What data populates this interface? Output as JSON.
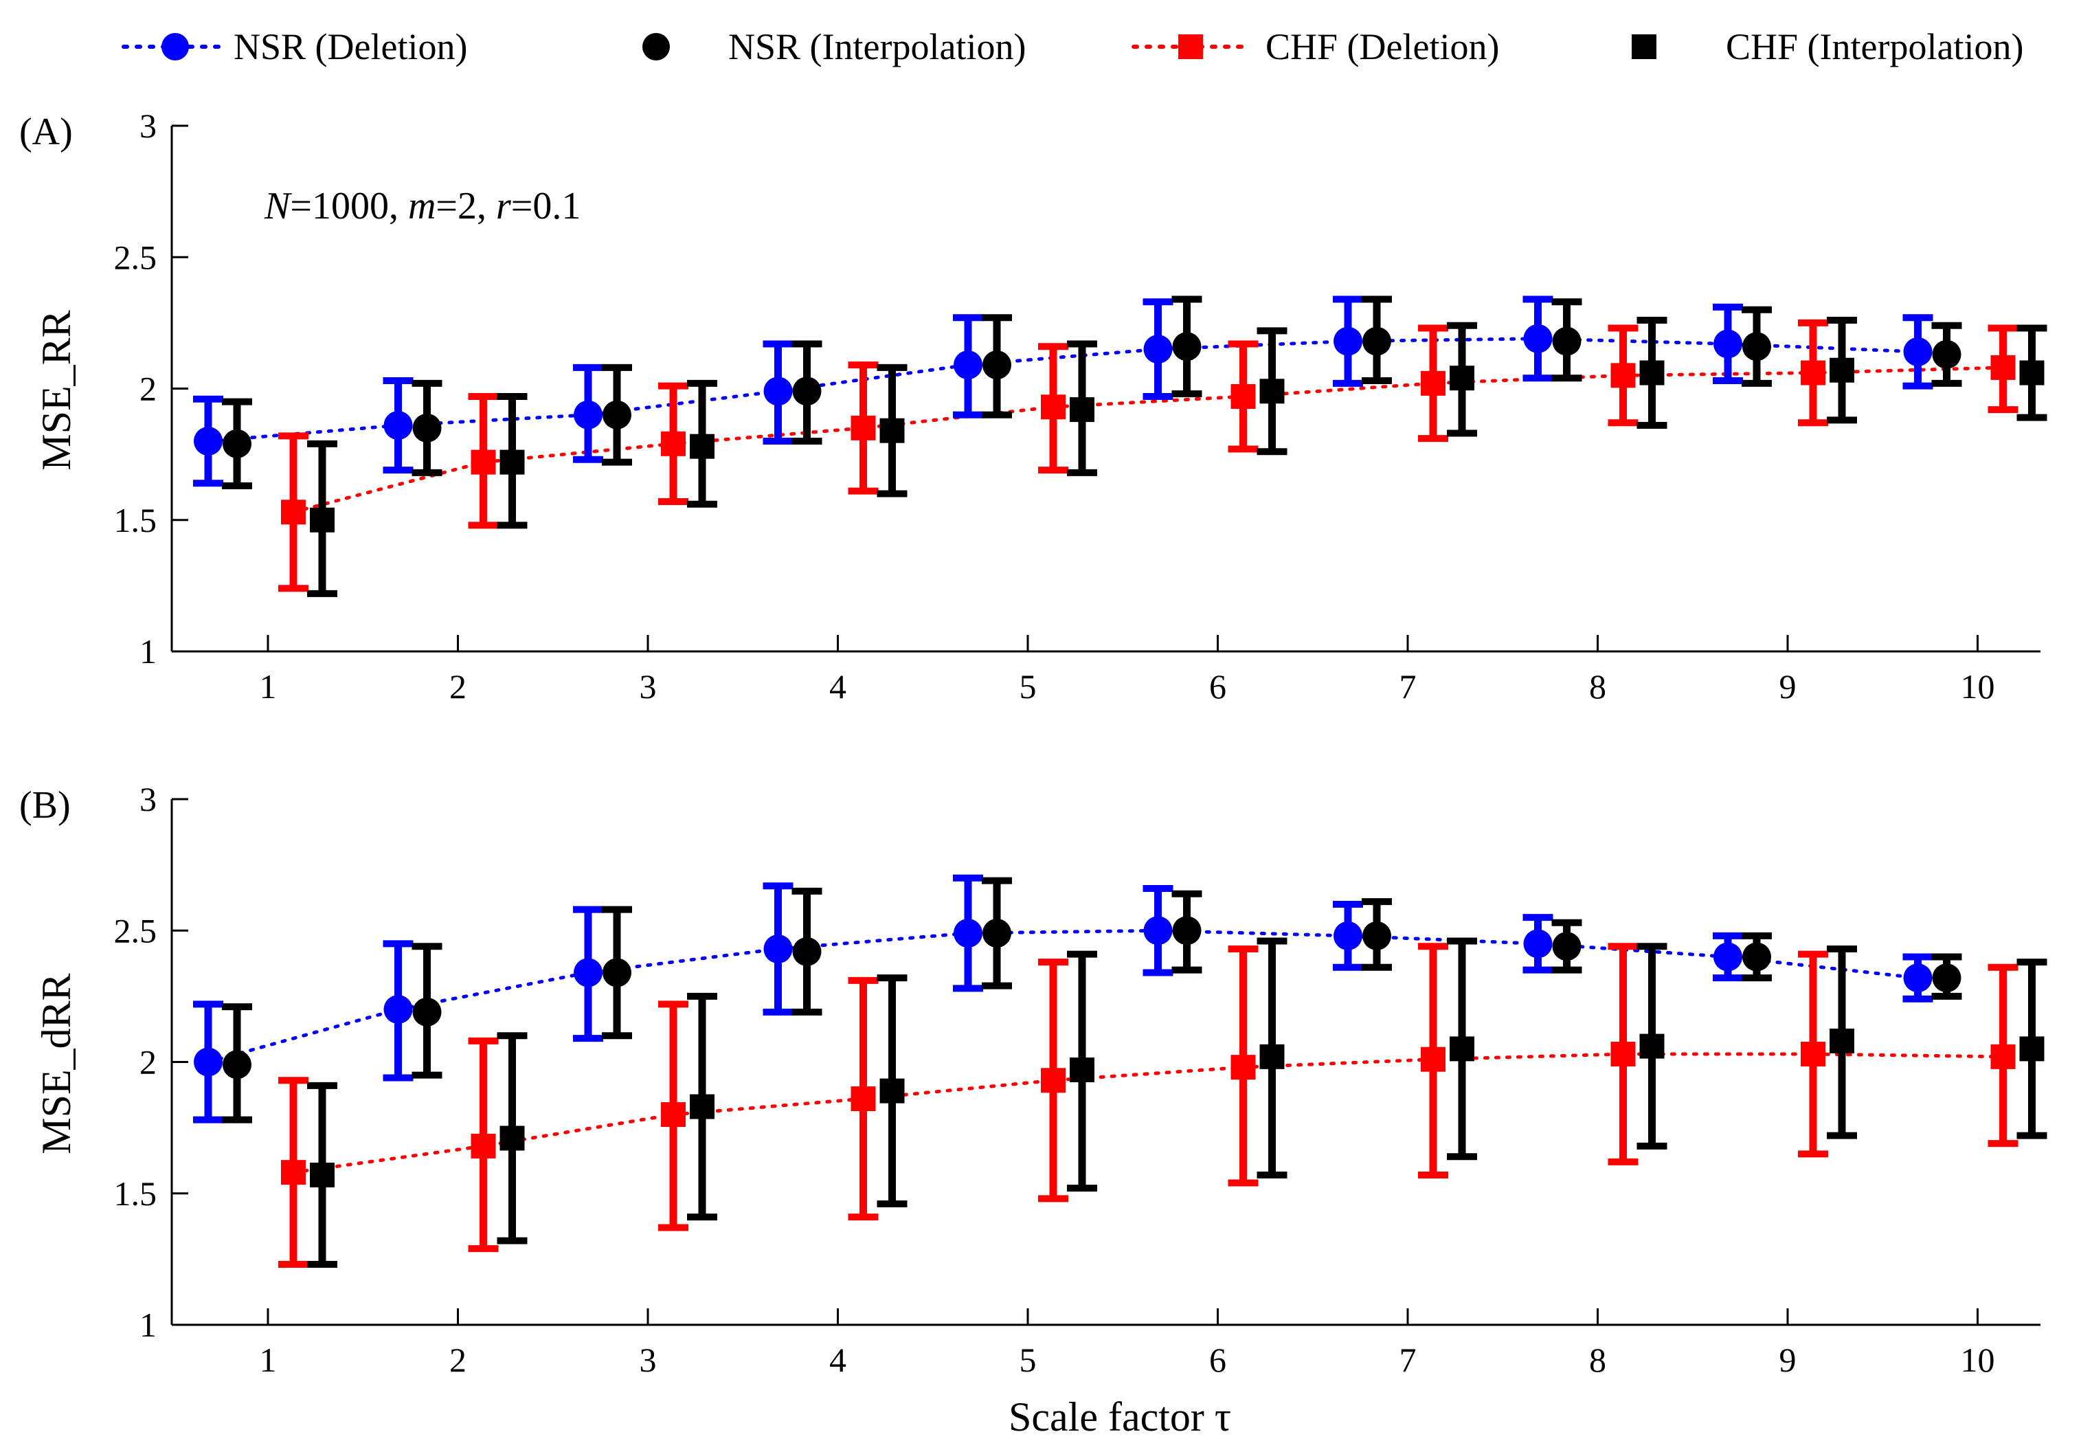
{
  "chart_data": {
    "type": "errorbar",
    "x_label": "Scale factor τ",
    "x_ticks": [
      1,
      2,
      3,
      4,
      5,
      6,
      7,
      8,
      9,
      10
    ],
    "legend": {
      "placement": "top",
      "entries": [
        {
          "label": "NSR (Deletion)",
          "color": "#0000ff",
          "marker": "circle",
          "line": "dotted"
        },
        {
          "label": "NSR (Interpolation)",
          "color": "#000000",
          "marker": "circle",
          "line": "none"
        },
        {
          "label": "CHF (Deletion)",
          "color": "#ff0000",
          "marker": "square",
          "line": "dotted"
        },
        {
          "label": "CHF (Interpolation)",
          "color": "#000000",
          "marker": "square",
          "line": "none"
        }
      ]
    },
    "panels": [
      {
        "label": "(A)",
        "ylabel": "MSE_RR",
        "ylim": [
          1,
          3
        ],
        "y_ticks": [
          "1",
          "1.5",
          "2",
          "2.5",
          "3"
        ],
        "annotation": {
          "N": "1000",
          "m": "2",
          "r": "0.1"
        },
        "series": [
          {
            "name": "NSR (Deletion)",
            "mean": [
              1.8,
              1.86,
              1.9,
              1.99,
              2.09,
              2.15,
              2.18,
              2.19,
              2.17,
              2.14
            ],
            "lower": [
              1.64,
              1.69,
              1.73,
              1.8,
              1.9,
              1.97,
              2.02,
              2.04,
              2.03,
              2.01
            ],
            "upper": [
              1.96,
              2.03,
              2.08,
              2.17,
              2.27,
              2.33,
              2.34,
              2.34,
              2.31,
              2.27
            ]
          },
          {
            "name": "NSR (Interpolation)",
            "mean": [
              1.79,
              1.85,
              1.9,
              1.99,
              2.09,
              2.16,
              2.18,
              2.18,
              2.16,
              2.13
            ],
            "lower": [
              1.63,
              1.68,
              1.72,
              1.8,
              1.9,
              1.98,
              2.03,
              2.04,
              2.02,
              2.02
            ],
            "upper": [
              1.95,
              2.02,
              2.08,
              2.17,
              2.27,
              2.34,
              2.34,
              2.33,
              2.3,
              2.24
            ]
          },
          {
            "name": "CHF (Deletion)",
            "mean": [
              1.53,
              1.72,
              1.79,
              1.85,
              1.93,
              1.97,
              2.02,
              2.05,
              2.06,
              2.08
            ],
            "lower": [
              1.24,
              1.48,
              1.57,
              1.61,
              1.69,
              1.77,
              1.81,
              1.87,
              1.87,
              1.92
            ],
            "upper": [
              1.82,
              1.97,
              2.01,
              2.09,
              2.16,
              2.17,
              2.23,
              2.23,
              2.25,
              2.23
            ]
          },
          {
            "name": "CHF (Interpolation)",
            "mean": [
              1.5,
              1.72,
              1.78,
              1.84,
              1.92,
              1.99,
              2.04,
              2.06,
              2.07,
              2.06
            ],
            "lower": [
              1.22,
              1.48,
              1.56,
              1.6,
              1.68,
              1.76,
              1.83,
              1.86,
              1.88,
              1.89
            ],
            "upper": [
              1.79,
              1.97,
              2.02,
              2.08,
              2.17,
              2.22,
              2.24,
              2.26,
              2.26,
              2.23
            ]
          }
        ]
      },
      {
        "label": "(B)",
        "ylabel": "MSE_dRR",
        "ylim": [
          1,
          3
        ],
        "y_ticks": [
          "1",
          "1.5",
          "2",
          "2.5",
          "3"
        ],
        "series": [
          {
            "name": "NSR (Deletion)",
            "mean": [
              2.0,
              2.2,
              2.34,
              2.43,
              2.49,
              2.5,
              2.48,
              2.45,
              2.4,
              2.32
            ],
            "lower": [
              1.78,
              1.94,
              2.09,
              2.19,
              2.28,
              2.34,
              2.36,
              2.35,
              2.32,
              2.24
            ],
            "upper": [
              2.22,
              2.45,
              2.58,
              2.67,
              2.7,
              2.66,
              2.6,
              2.55,
              2.48,
              2.4
            ]
          },
          {
            "name": "NSR (Interpolation)",
            "mean": [
              1.99,
              2.19,
              2.34,
              2.42,
              2.49,
              2.5,
              2.48,
              2.44,
              2.4,
              2.32
            ],
            "lower": [
              1.78,
              1.95,
              2.1,
              2.19,
              2.29,
              2.35,
              2.36,
              2.35,
              2.32,
              2.25
            ],
            "upper": [
              2.21,
              2.44,
              2.58,
              2.65,
              2.69,
              2.64,
              2.61,
              2.53,
              2.48,
              2.4
            ]
          },
          {
            "name": "CHF (Deletion)",
            "mean": [
              1.58,
              1.68,
              1.8,
              1.86,
              1.93,
              1.98,
              2.01,
              2.03,
              2.03,
              2.02
            ],
            "lower": [
              1.23,
              1.29,
              1.37,
              1.41,
              1.48,
              1.54,
              1.57,
              1.62,
              1.65,
              1.69
            ],
            "upper": [
              1.93,
              2.08,
              2.22,
              2.31,
              2.38,
              2.43,
              2.44,
              2.44,
              2.41,
              2.36
            ]
          },
          {
            "name": "CHF (Interpolation)",
            "mean": [
              1.57,
              1.71,
              1.83,
              1.89,
              1.97,
              2.02,
              2.05,
              2.06,
              2.08,
              2.05
            ],
            "lower": [
              1.23,
              1.32,
              1.41,
              1.46,
              1.52,
              1.57,
              1.64,
              1.68,
              1.72,
              1.72
            ],
            "upper": [
              1.91,
              2.1,
              2.25,
              2.32,
              2.41,
              2.46,
              2.46,
              2.44,
              2.43,
              2.38
            ]
          }
        ]
      }
    ]
  }
}
